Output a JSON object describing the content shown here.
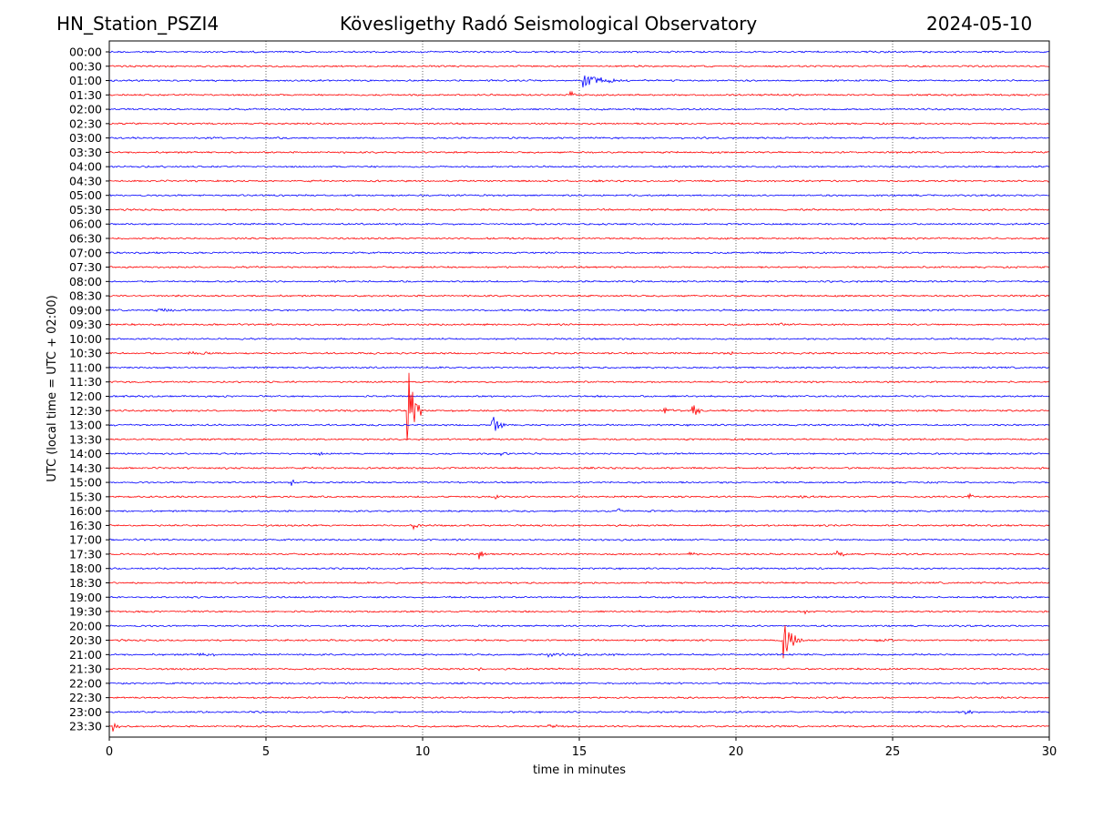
{
  "header": {
    "station": "HN_Station_PSZI4",
    "observatory": "Kövesligethy Radó Seismological Observatory",
    "date": "2024-05-10"
  },
  "chart_data": {
    "type": "line",
    "title": "Kövesligethy Radó Seismological Observatory",
    "xlabel": "time in minutes",
    "ylabel": "UTC (local time = UTC + 02:00)",
    "xlim": [
      0,
      30
    ],
    "xticks": [
      "0",
      "5",
      "10",
      "15",
      "20",
      "25",
      "30"
    ],
    "grid": "vertical dotted every 5 minutes",
    "colors": [
      "#0000ff",
      "#ff0000"
    ],
    "rows": [
      "00:00",
      "00:30",
      "01:00",
      "01:30",
      "02:00",
      "02:30",
      "03:00",
      "03:30",
      "04:00",
      "04:30",
      "05:00",
      "05:30",
      "06:00",
      "06:30",
      "07:00",
      "07:30",
      "08:00",
      "08:30",
      "09:00",
      "09:30",
      "10:00",
      "10:30",
      "11:00",
      "11:30",
      "12:00",
      "12:30",
      "13:00",
      "13:30",
      "14:00",
      "14:30",
      "15:00",
      "15:30",
      "16:00",
      "16:30",
      "17:00",
      "17:30",
      "18:00",
      "18:30",
      "19:00",
      "19:30",
      "20:00",
      "20:30",
      "21:00",
      "21:30",
      "22:00",
      "22:30",
      "23:00",
      "23:30"
    ],
    "events": [
      {
        "row": "00:30",
        "minute": 10.2,
        "amp": 1.5,
        "dur": 1.0
      },
      {
        "row": "01:00",
        "minute": 15.1,
        "amp": 8,
        "dur": 1.6
      },
      {
        "row": "01:30",
        "minute": 14.7,
        "amp": 6,
        "dur": 0.3
      },
      {
        "row": "09:00",
        "minute": 1.5,
        "amp": 2,
        "dur": 1.5
      },
      {
        "row": "09:30",
        "minute": 21.4,
        "amp": 3,
        "dur": 0.2
      },
      {
        "row": "10:30",
        "minute": 2.5,
        "amp": 1.5,
        "dur": 1.5
      },
      {
        "row": "10:30",
        "minute": 19.8,
        "amp": 4,
        "dur": 0.3
      },
      {
        "row": "12:30",
        "minute": 9.5,
        "amp": 60,
        "dur": 0.5
      },
      {
        "row": "12:30",
        "minute": 18.6,
        "amp": 9,
        "dur": 0.5
      },
      {
        "row": "12:30",
        "minute": 17.7,
        "amp": 4,
        "dur": 0.6
      },
      {
        "row": "13:00",
        "minute": 12.2,
        "amp": 14,
        "dur": 0.5
      },
      {
        "row": "13:00",
        "minute": 24.2,
        "amp": 2,
        "dur": 1.5
      },
      {
        "row": "14:00",
        "minute": 6.7,
        "amp": 3,
        "dur": 0.2
      },
      {
        "row": "14:00",
        "minute": 12.5,
        "amp": 2,
        "dur": 0.8
      },
      {
        "row": "15:00",
        "minute": 5.8,
        "amp": 5,
        "dur": 0.3
      },
      {
        "row": "15:30",
        "minute": 12.3,
        "amp": 4,
        "dur": 0.3
      },
      {
        "row": "15:30",
        "minute": 22.0,
        "amp": 1.5,
        "dur": 1.0
      },
      {
        "row": "15:30",
        "minute": 27.4,
        "amp": 5,
        "dur": 0.3
      },
      {
        "row": "16:00",
        "minute": 16.2,
        "amp": 5,
        "dur": 0.3
      },
      {
        "row": "16:30",
        "minute": 9.7,
        "amp": 5,
        "dur": 0.4
      },
      {
        "row": "17:30",
        "minute": 11.8,
        "amp": 6,
        "dur": 0.4
      },
      {
        "row": "17:30",
        "minute": 18.5,
        "amp": 5,
        "dur": 0.2
      },
      {
        "row": "17:30",
        "minute": 23.2,
        "amp": 7,
        "dur": 0.4
      },
      {
        "row": "19:30",
        "minute": 22.2,
        "amp": 3,
        "dur": 0.3
      },
      {
        "row": "20:30",
        "minute": 21.5,
        "amp": 22,
        "dur": 0.7
      },
      {
        "row": "20:30",
        "minute": 24.5,
        "amp": 2,
        "dur": 1.2
      },
      {
        "row": "21:00",
        "minute": 2.8,
        "amp": 2,
        "dur": 1.2
      },
      {
        "row": "21:00",
        "minute": 14.0,
        "amp": 2,
        "dur": 2.5
      },
      {
        "row": "21:30",
        "minute": 11.8,
        "amp": 2,
        "dur": 0.6
      },
      {
        "row": "23:00",
        "minute": 27.3,
        "amp": 3,
        "dur": 0.6
      },
      {
        "row": "23:30",
        "minute": 0.1,
        "amp": 7,
        "dur": 0.3
      },
      {
        "row": "23:30",
        "minute": 14.0,
        "amp": 2,
        "dur": 1.2
      }
    ]
  }
}
